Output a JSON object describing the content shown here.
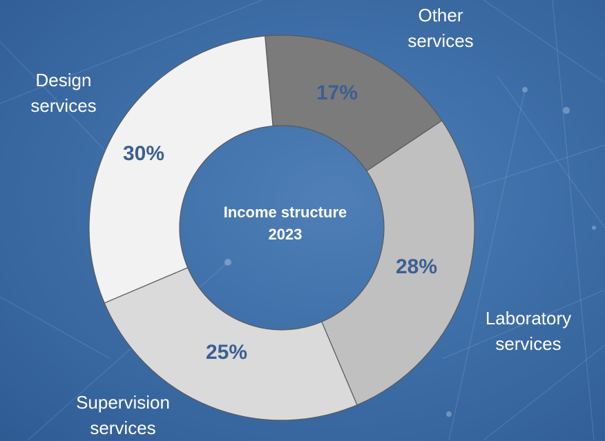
{
  "chart_data": {
    "type": "pie",
    "title": "Income structure 2023",
    "categories": [
      "Other services",
      "Laboratory services",
      "Supervision services",
      "Design services"
    ],
    "values": [
      17,
      28,
      25,
      30
    ],
    "labels": {
      "other": [
        "Other",
        "services"
      ],
      "laboratory": [
        "Laboratory",
        "services"
      ],
      "supervision": [
        "Supervision",
        "services"
      ],
      "design": [
        "Design",
        "services"
      ]
    },
    "data_labels": [
      "17%",
      "28%",
      "25%",
      "30%"
    ],
    "center_title": [
      "Income structure",
      "2023"
    ],
    "colors": [
      "#7b7b7b",
      "#c0c0c0",
      "#dadada",
      "#f2f2f2"
    ],
    "outline_color": "#595959",
    "data_label_color": "#3a5f95"
  }
}
